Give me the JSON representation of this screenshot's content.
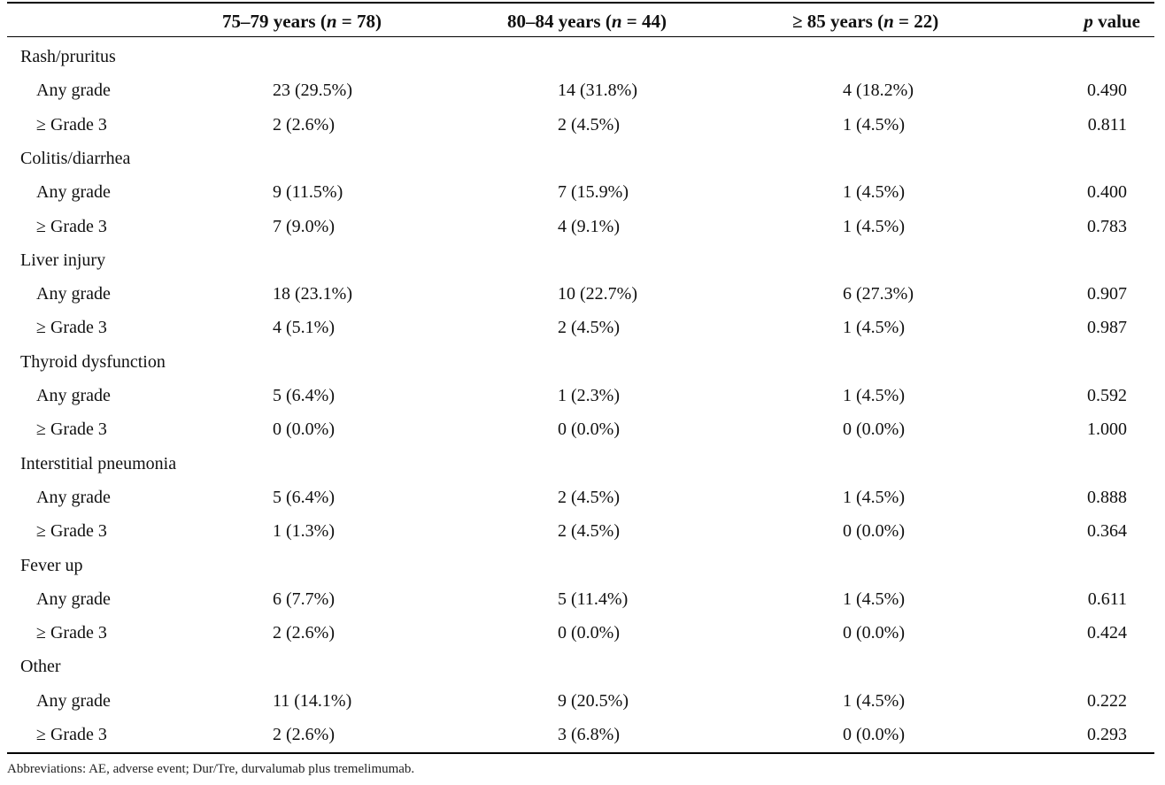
{
  "columns": {
    "c1": {
      "pre": "75–79 years (",
      "n": "n",
      "post": " = 78)"
    },
    "c2": {
      "pre": "80–84 years (",
      "n": "n",
      "post": " = 44)"
    },
    "c3": {
      "pre": "≥ 85 years (",
      "n": "n",
      "post": " = 22)"
    },
    "p": {
      "pre": "",
      "n": "p",
      "post": " value"
    }
  },
  "rows": [
    {
      "kind": "cat",
      "label": "Rash/pruritus"
    },
    {
      "kind": "sub",
      "label": "Any grade",
      "c1": "23 (29.5%)",
      "c2": "14 (31.8%)",
      "c3": "4 (18.2%)",
      "p": "0.490"
    },
    {
      "kind": "sub",
      "label": "≥ Grade 3",
      "c1": "2 (2.6%)",
      "c2": "2 (4.5%)",
      "c3": "1 (4.5%)",
      "p": "0.811"
    },
    {
      "kind": "cat",
      "label": "Colitis/diarrhea"
    },
    {
      "kind": "sub",
      "label": "Any grade",
      "c1": "9 (11.5%)",
      "c2": "7 (15.9%)",
      "c3": "1 (4.5%)",
      "p": "0.400"
    },
    {
      "kind": "sub",
      "label": "≥ Grade 3",
      "c1": "7 (9.0%)",
      "c2": "4 (9.1%)",
      "c3": "1 (4.5%)",
      "p": "0.783"
    },
    {
      "kind": "cat",
      "label": "Liver injury"
    },
    {
      "kind": "sub",
      "label": "Any grade",
      "c1": "18 (23.1%)",
      "c2": "10 (22.7%)",
      "c3": "6 (27.3%)",
      "p": "0.907"
    },
    {
      "kind": "sub",
      "label": "≥ Grade 3",
      "c1": "4 (5.1%)",
      "c2": "2 (4.5%)",
      "c3": "1 (4.5%)",
      "p": "0.987"
    },
    {
      "kind": "cat",
      "label": "Thyroid dysfunction"
    },
    {
      "kind": "sub",
      "label": "Any grade",
      "c1": "5 (6.4%)",
      "c2": "1 (2.3%)",
      "c3": "1 (4.5%)",
      "p": "0.592"
    },
    {
      "kind": "sub",
      "label": "≥ Grade 3",
      "c1": "0 (0.0%)",
      "c2": "0 (0.0%)",
      "c3": "0 (0.0%)",
      "p": "1.000"
    },
    {
      "kind": "cat",
      "label": "Interstitial pneumonia"
    },
    {
      "kind": "sub",
      "label": "Any grade",
      "c1": "5 (6.4%)",
      "c2": "2 (4.5%)",
      "c3": "1 (4.5%)",
      "p": "0.888"
    },
    {
      "kind": "sub",
      "label": "≥ Grade 3",
      "c1": "1 (1.3%)",
      "c2": "2 (4.5%)",
      "c3": "0 (0.0%)",
      "p": "0.364"
    },
    {
      "kind": "cat",
      "label": "Fever up"
    },
    {
      "kind": "sub",
      "label": "Any grade",
      "c1": "6 (7.7%)",
      "c2": "5 (11.4%)",
      "c3": "1 (4.5%)",
      "p": "0.611"
    },
    {
      "kind": "sub",
      "label": "≥ Grade 3",
      "c1": "2 (2.6%)",
      "c2": "0 (0.0%)",
      "c3": "0 (0.0%)",
      "p": "0.424"
    },
    {
      "kind": "cat",
      "label": "Other"
    },
    {
      "kind": "sub",
      "label": "Any grade",
      "c1": "11 (14.1%)",
      "c2": "9 (20.5%)",
      "c3": "1 (4.5%)",
      "p": "0.222"
    },
    {
      "kind": "sub",
      "label": "≥ Grade 3",
      "c1": "2 (2.6%)",
      "c2": "3 (6.8%)",
      "c3": "0 (0.0%)",
      "p": "0.293"
    }
  ],
  "footnote": "Abbreviations: AE, adverse event; Dur/Tre, durvalumab plus tremelimumab."
}
